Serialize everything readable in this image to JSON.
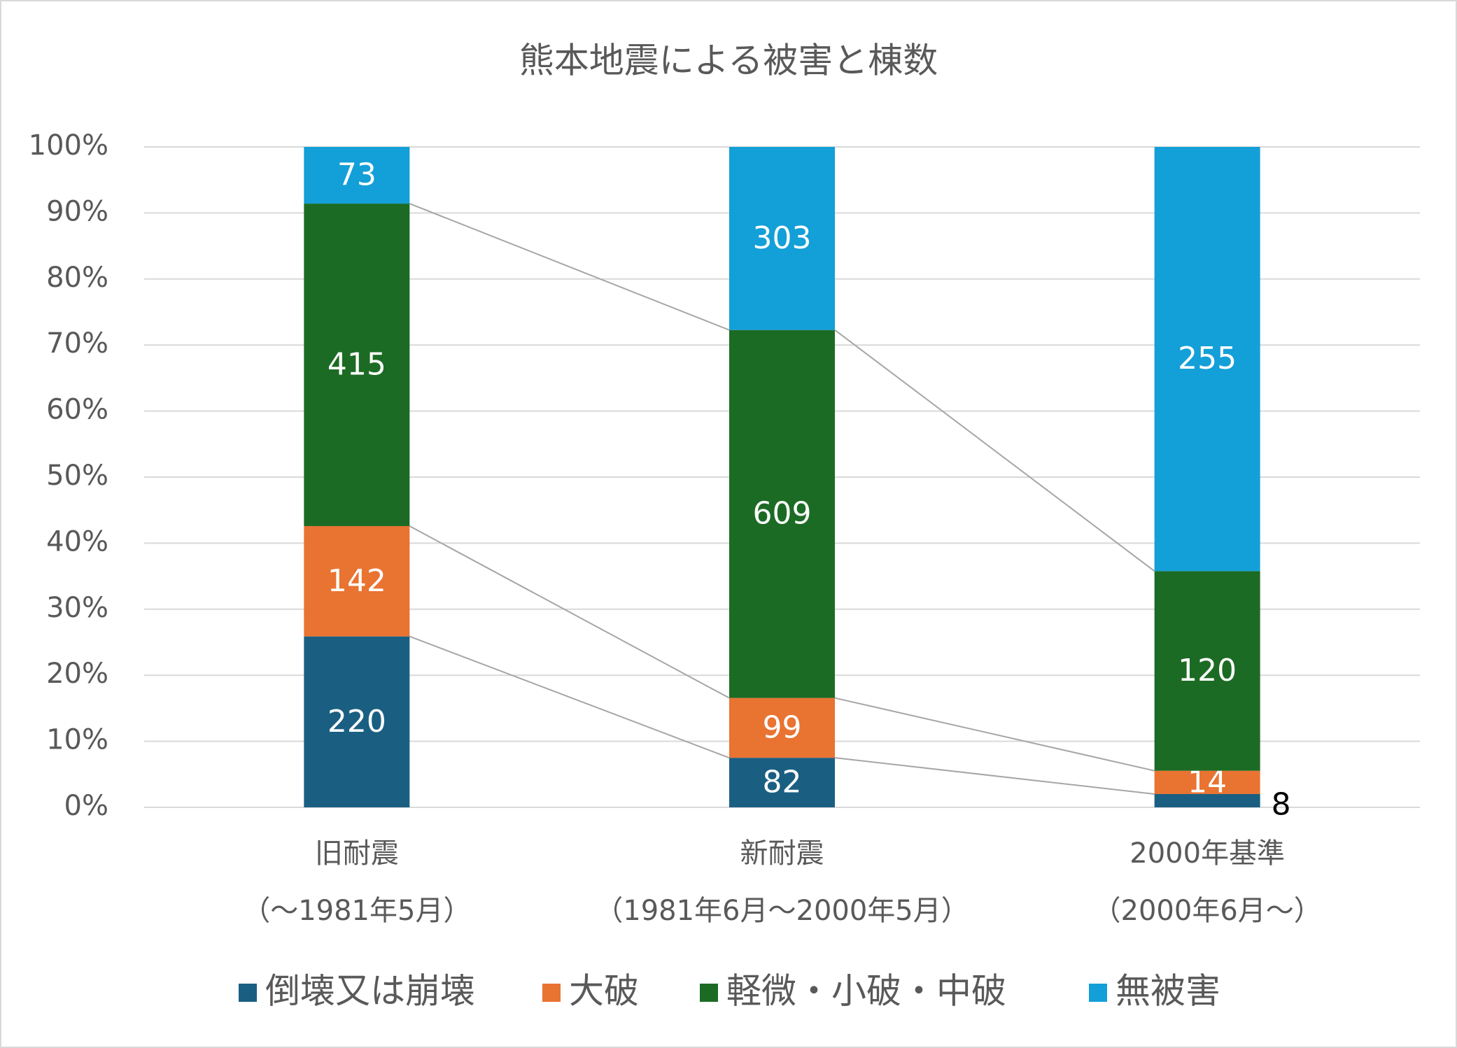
{
  "chart_data": {
    "type": "bar",
    "stacking": "percent",
    "title": "熊本地震による被害と棟数",
    "categories": [
      [
        "旧耐震",
        "（～1981年5月）"
      ],
      [
        "新耐震",
        "（1981年6月～2000年5月）"
      ],
      [
        "2000年基準",
        "（2000年6月～）"
      ]
    ],
    "series": [
      {
        "name": "倒壊又は崩壊",
        "color": "#1a5f82",
        "values": [
          220,
          82,
          8
        ]
      },
      {
        "name": "大破",
        "color": "#e97331",
        "values": [
          142,
          99,
          14
        ]
      },
      {
        "name": "軽微・小破・中破",
        "color": "#1c6b24",
        "values": [
          415,
          609,
          120
        ]
      },
      {
        "name": "無被害",
        "color": "#139fd8",
        "values": [
          73,
          303,
          255
        ]
      }
    ],
    "ylim": [
      0,
      100
    ],
    "yticks": [
      {
        "value": 0,
        "label": "0%"
      },
      {
        "value": 10,
        "label": "10%"
      },
      {
        "value": 20,
        "label": "20%"
      },
      {
        "value": 30,
        "label": "30%"
      },
      {
        "value": 40,
        "label": "40%"
      },
      {
        "value": 50,
        "label": "50%"
      },
      {
        "value": 60,
        "label": "60%"
      },
      {
        "value": 70,
        "label": "70%"
      },
      {
        "value": 80,
        "label": "80%"
      },
      {
        "value": 90,
        "label": "90%"
      },
      {
        "value": 100,
        "label": "100%"
      }
    ],
    "grid": true,
    "series_lines": true,
    "data_labels": true,
    "legend": "bottom"
  }
}
